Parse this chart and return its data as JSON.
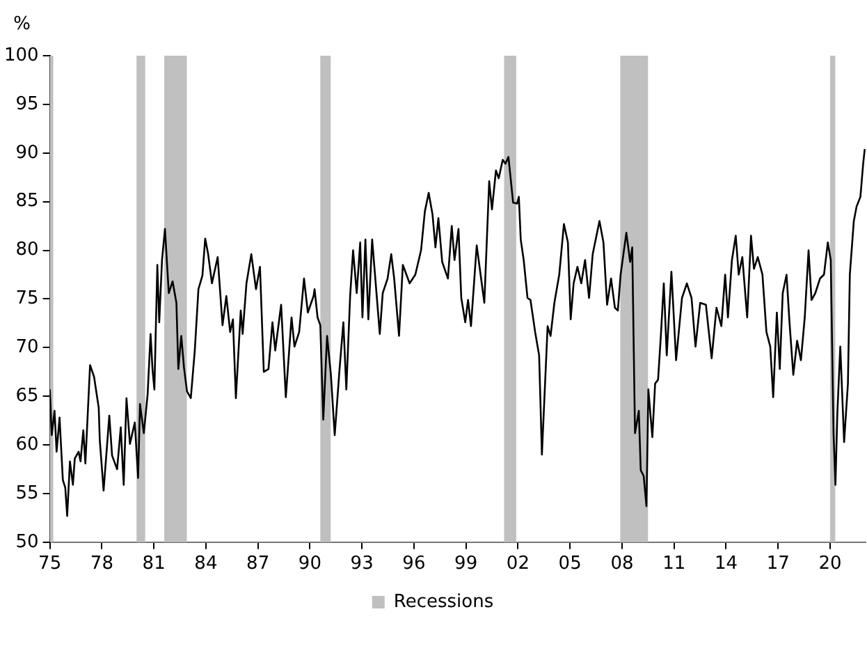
{
  "chart_data": {
    "type": "line",
    "ylabel": "%",
    "xlim": [
      1975,
      2022.05
    ],
    "xticks": [
      {
        "value": 1975,
        "label": "75"
      },
      {
        "value": 1978,
        "label": "78"
      },
      {
        "value": 1981,
        "label": "81"
      },
      {
        "value": 1984,
        "label": "84"
      },
      {
        "value": 1987,
        "label": "87"
      },
      {
        "value": 1990,
        "label": "90"
      },
      {
        "value": 1993,
        "label": "93"
      },
      {
        "value": 1996,
        "label": "96"
      },
      {
        "value": 1999,
        "label": "99"
      },
      {
        "value": 2002,
        "label": "02"
      },
      {
        "value": 2005,
        "label": "05"
      },
      {
        "value": 2008,
        "label": "08"
      },
      {
        "value": 2011,
        "label": "11"
      },
      {
        "value": 2014,
        "label": "14"
      },
      {
        "value": 2017,
        "label": "17"
      },
      {
        "value": 2020,
        "label": "20"
      }
    ],
    "ylim": [
      50,
      100
    ],
    "yticks": [
      50,
      55,
      60,
      65,
      70,
      75,
      80,
      85,
      90,
      95,
      100
    ],
    "grid": false,
    "legend": "bottom",
    "bands": [
      {
        "axis": "x",
        "from": 1975,
        "to": 1975.2,
        "label": "Recessions",
        "color": "#c0c0c0"
      },
      {
        "axis": "x",
        "from": 1980,
        "to": 1980.5,
        "color": "#c0c0c0"
      },
      {
        "axis": "x",
        "from": 1981.6,
        "to": 1982.9,
        "color": "#c0c0c0"
      },
      {
        "axis": "x",
        "from": 1990.6,
        "to": 1991.2,
        "color": "#c0c0c0"
      },
      {
        "axis": "x",
        "from": 2001.2,
        "to": 2001.9,
        "color": "#c0c0c0"
      },
      {
        "axis": "x",
        "from": 2007.9,
        "to": 2009.5,
        "color": "#c0c0c0"
      },
      {
        "axis": "x",
        "from": 2020,
        "to": 2020.3,
        "color": "#c0c0c0"
      }
    ],
    "series": [
      {
        "color": "#000000",
        "x": [
          1975.0,
          1975.11,
          1975.27,
          1975.39,
          1975.56,
          1975.75,
          1975.89,
          1976.0,
          1976.16,
          1976.33,
          1976.44,
          1976.66,
          1976.77,
          1976.93,
          1977.05,
          1977.32,
          1977.55,
          1977.82,
          1977.88,
          1978.1,
          1978.43,
          1978.59,
          1978.88,
          1979.09,
          1979.26,
          1979.42,
          1979.62,
          1979.9,
          1980.09,
          1980.2,
          1980.42,
          1980.64,
          1980.81,
          1980.92,
          1981.03,
          1981.2,
          1981.31,
          1981.47,
          1981.64,
          1981.86,
          1982.08,
          1982.3,
          1982.41,
          1982.58,
          1982.74,
          1982.91,
          1983.13,
          1983.36,
          1983.57,
          1983.8,
          1983.96,
          1984.13,
          1984.35,
          1984.68,
          1984.96,
          1985.18,
          1985.4,
          1985.56,
          1985.73,
          1986.01,
          1986.12,
          1986.34,
          1986.62,
          1986.89,
          1987.12,
          1987.34,
          1987.61,
          1987.84,
          1988.0,
          1988.34,
          1988.61,
          1988.94,
          1989.11,
          1989.38,
          1989.66,
          1989.88,
          1990.21,
          1990.27,
          1990.44,
          1990.6,
          1990.77,
          1990.99,
          1991.21,
          1991.43,
          1991.71,
          1991.93,
          1992.1,
          1992.32,
          1992.49,
          1992.7,
          1992.9,
          1993.03,
          1993.2,
          1993.37,
          1993.59,
          1994.03,
          1994.2,
          1994.48,
          1994.69,
          1994.86,
          1995.14,
          1995.36,
          1995.75,
          1996.08,
          1996.41,
          1996.63,
          1996.85,
          1997.07,
          1997.24,
          1997.41,
          1997.63,
          1997.96,
          1998.18,
          1998.34,
          1998.57,
          1998.73,
          1998.96,
          1999.12,
          1999.29,
          1999.62,
          2000.06,
          2000.34,
          2000.5,
          2000.73,
          2000.89,
          2001.12,
          2001.28,
          2001.45,
          2001.72,
          2001.95,
          2002.05,
          2002.16,
          2002.33,
          2002.55,
          2002.72,
          2002.99,
          2003.22,
          2003.38,
          2003.71,
          2003.88,
          2004.1,
          2004.38,
          2004.65,
          2004.88,
          2005.04,
          2005.21,
          2005.43,
          2005.65,
          2005.87,
          2006.1,
          2006.31,
          2006.7,
          2006.93,
          2007.14,
          2007.37,
          2007.59,
          2007.76,
          2007.92,
          2008.25,
          2008.47,
          2008.59,
          2008.75,
          2008.97,
          2009.08,
          2009.25,
          2009.41,
          2009.52,
          2009.75,
          2009.91,
          2010.08,
          2010.24,
          2010.41,
          2010.58,
          2010.85,
          2011.12,
          2011.46,
          2011.74,
          2012.01,
          2012.24,
          2012.51,
          2012.84,
          2013.17,
          2013.45,
          2013.73,
          2013.95,
          2014.11,
          2014.34,
          2014.56,
          2014.73,
          2014.94,
          2015.22,
          2015.44,
          2015.61,
          2015.83,
          2016.1,
          2016.33,
          2016.55,
          2016.72,
          2016.93,
          2017.1,
          2017.27,
          2017.49,
          2017.66,
          2017.88,
          2018.1,
          2018.32,
          2018.54,
          2018.76,
          2018.93,
          2019.15,
          2019.42,
          2019.65,
          2019.87,
          2020.04,
          2020.2,
          2020.31,
          2020.42,
          2020.59,
          2020.81,
          2021.03,
          2021.14,
          2021.37,
          2021.53,
          2021.75,
          2021.91,
          2022.0
        ],
        "values": [
          65.7,
          61.0,
          63.5,
          59.3,
          62.8,
          56.4,
          55.6,
          52.7,
          58.3,
          55.9,
          58.6,
          59.3,
          58.3,
          61.5,
          58.1,
          68.2,
          67.0,
          63.8,
          60.5,
          55.3,
          63.0,
          58.9,
          57.5,
          61.8,
          55.9,
          64.8,
          60.1,
          62.3,
          56.6,
          64.2,
          61.2,
          65.2,
          71.4,
          67.8,
          65.7,
          78.5,
          72.6,
          79.0,
          82.2,
          75.6,
          76.8,
          74.6,
          67.8,
          71.2,
          67.9,
          65.5,
          64.8,
          69.7,
          76.0,
          77.4,
          81.2,
          79.6,
          76.6,
          79.3,
          72.3,
          75.3,
          71.6,
          72.9,
          64.8,
          73.8,
          71.4,
          76.6,
          79.6,
          76.0,
          78.3,
          67.5,
          67.8,
          72.6,
          69.7,
          74.4,
          64.9,
          73.1,
          70.1,
          71.6,
          77.1,
          73.6,
          75.3,
          76.0,
          73.1,
          72.3,
          62.6,
          71.2,
          67.2,
          61.0,
          67.8,
          72.6,
          65.7,
          75.3,
          80.0,
          75.6,
          80.8,
          73.1,
          81.1,
          72.9,
          81.1,
          71.4,
          75.6,
          77.1,
          79.6,
          77.1,
          71.2,
          78.5,
          76.6,
          77.5,
          80.0,
          84.0,
          85.9,
          83.7,
          80.3,
          83.3,
          78.8,
          77.1,
          82.5,
          79.0,
          82.2,
          75.1,
          72.6,
          74.9,
          72.2,
          80.5,
          74.6,
          87.1,
          84.2,
          88.2,
          87.4,
          89.3,
          88.9,
          89.6,
          84.9,
          84.8,
          85.5,
          81.1,
          79.0,
          75.1,
          74.9,
          71.6,
          69.2,
          59.0,
          72.2,
          71.2,
          74.6,
          77.5,
          82.7,
          80.8,
          72.9,
          76.6,
          78.3,
          76.6,
          79.0,
          75.1,
          79.6,
          83.0,
          80.8,
          74.4,
          77.1,
          74.1,
          73.8,
          77.5,
          81.8,
          78.8,
          80.3,
          61.2,
          63.5,
          57.4,
          56.8,
          53.7,
          65.7,
          60.8,
          66.3,
          66.7,
          71.2,
          76.6,
          69.2,
          77.8,
          68.7,
          75.1,
          76.6,
          75.1,
          70.1,
          74.6,
          74.4,
          68.9,
          74.1,
          72.2,
          77.5,
          73.1,
          79.0,
          81.5,
          77.5,
          79.3,
          73.1,
          81.5,
          78.1,
          79.3,
          77.5,
          71.6,
          70.1,
          64.9,
          73.6,
          67.8,
          75.6,
          77.5,
          72.6,
          67.2,
          70.7,
          68.7,
          73.1,
          80.0,
          74.9,
          75.6,
          77.1,
          77.5,
          80.8,
          79.0,
          61.2,
          55.9,
          63.3,
          70.1,
          60.3,
          66.3,
          77.5,
          83.0,
          84.5,
          85.5,
          88.9,
          90.4
        ]
      }
    ]
  }
}
